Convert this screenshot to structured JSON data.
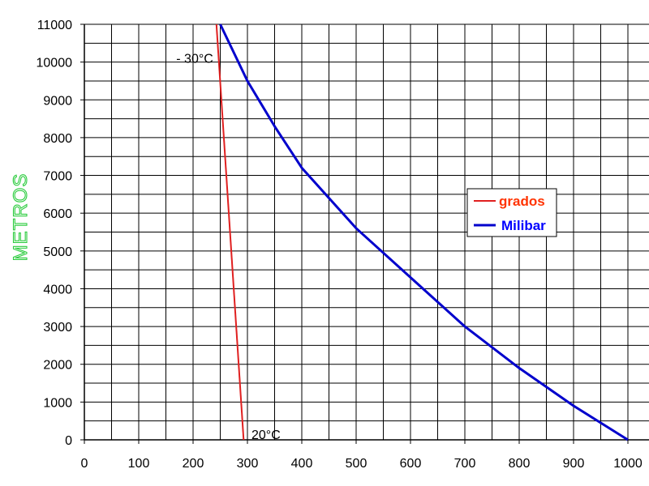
{
  "chart_data": {
    "type": "line",
    "ylabel": "METROS",
    "xlabel": "",
    "title": "",
    "xlim": [
      0,
      1000
    ],
    "ylim": [
      0,
      11000
    ],
    "x_ticks": [
      0,
      100,
      200,
      300,
      400,
      500,
      600,
      700,
      800,
      900,
      1000
    ],
    "y_ticks": [
      0,
      1000,
      2000,
      3000,
      4000,
      5000,
      6000,
      7000,
      8000,
      9000,
      10000,
      11000
    ],
    "grid": true,
    "legend_position": "right",
    "series": [
      {
        "name": "grados",
        "color": "#e02020",
        "points": [
          [
            293,
            0
          ],
          [
            243,
            11000
          ]
        ]
      },
      {
        "name": "Milibar",
        "color": "#0000cc",
        "points": [
          [
            1000,
            0
          ],
          [
            900,
            900
          ],
          [
            800,
            1900
          ],
          [
            700,
            3000
          ],
          [
            600,
            4300
          ],
          [
            500,
            5600
          ],
          [
            400,
            7200
          ],
          [
            350,
            8300
          ],
          [
            300,
            9500
          ],
          [
            250,
            11000
          ]
        ]
      }
    ],
    "annotations": [
      {
        "text": "- 30°C",
        "x": 240,
        "y": 10000
      },
      {
        "text": "20°C",
        "x": 300,
        "y": 0
      }
    ]
  },
  "colors": {
    "ylabel": "#2ecc40",
    "grados_text": "#ff3300",
    "milibar_text": "#0000ff"
  }
}
